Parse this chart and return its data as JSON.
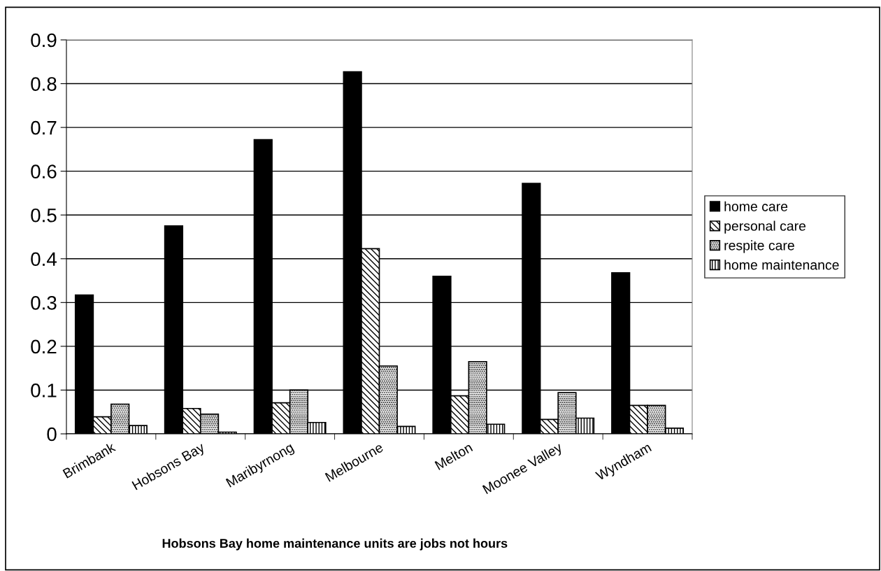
{
  "chart_data": {
    "type": "bar",
    "categories": [
      "Brimbank",
      "Hobsons Bay",
      "Maribyrnong",
      "Melbourne",
      "Melton",
      "Moonee Valley",
      "Wyndham"
    ],
    "series": [
      {
        "name": "home care",
        "color": "#000000",
        "values": [
          0.317,
          0.475,
          0.672,
          0.827,
          0.36,
          0.572,
          0.368
        ]
      },
      {
        "name": "personal care",
        "color": "#000000",
        "values": [
          0.039,
          0.058,
          0.071,
          0.423,
          0.087,
          0.033,
          0.065
        ]
      },
      {
        "name": "respite care",
        "color": "#000000",
        "values": [
          0.068,
          0.045,
          0.1,
          0.155,
          0.165,
          0.094,
          0.065
        ]
      },
      {
        "name": "home maintenance",
        "color": "#000000",
        "values": [
          0.019,
          0.004,
          0.026,
          0.017,
          0.022,
          0.036,
          0.013
        ]
      }
    ],
    "ylim": [
      0,
      0.9
    ],
    "yticks": [
      0,
      0.1,
      0.2,
      0.3,
      0.4,
      0.5,
      0.6,
      0.7,
      0.8,
      0.9
    ],
    "grid": "y",
    "legend": "right",
    "annotations": [
      "Hobsons Bay home maintenance units are jobs not hours"
    ]
  }
}
